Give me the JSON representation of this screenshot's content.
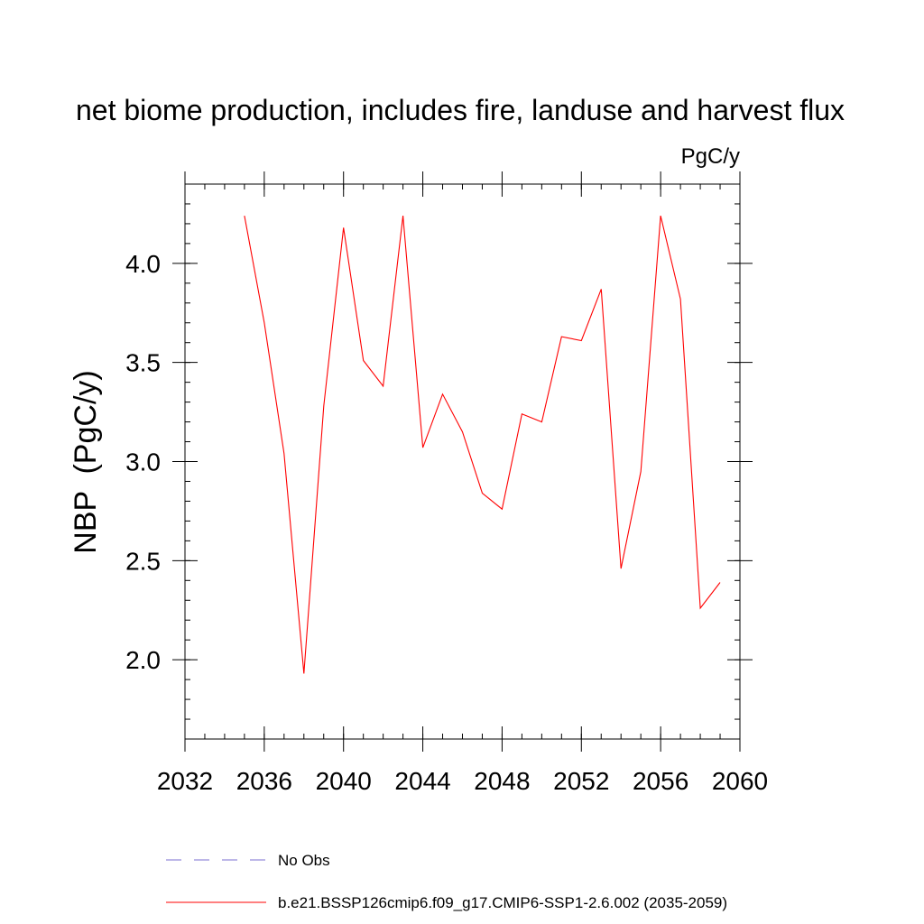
{
  "chart_data": {
    "type": "line",
    "title": "net biome production, includes fire, landuse and harvest flux",
    "units": "PgC/y",
    "ylabel": "NBP  (PgC/y)",
    "xlabel": "",
    "xlim": [
      2032,
      2060
    ],
    "ylim": [
      1.6,
      4.4
    ],
    "x_ticks": [
      2032,
      2036,
      2040,
      2044,
      2048,
      2052,
      2056,
      2060
    ],
    "y_ticks": [
      2.0,
      2.5,
      3.0,
      3.5,
      4.0
    ],
    "x_tick_labels": [
      "2032",
      "2036",
      "2040",
      "2044",
      "2048",
      "2052",
      "2056",
      "2060"
    ],
    "y_tick_labels": [
      "2.0",
      "2.5",
      "3.0",
      "3.5",
      "4.0"
    ],
    "x_minor_step": 1,
    "y_minor_step": 0.1,
    "grid": false,
    "legend_placement": "bottom",
    "series": [
      {
        "name": "b.e21.BSSP126cmip6.f09_g17.CMIP6-SSP1-2.6.002 (2035-2059)",
        "color": "#ff0000",
        "style": "solid",
        "x": [
          2035,
          2036,
          2037,
          2038,
          2039,
          2040,
          2041,
          2042,
          2043,
          2044,
          2045,
          2046,
          2047,
          2048,
          2049,
          2050,
          2051,
          2052,
          2053,
          2054,
          2055,
          2056,
          2057,
          2058,
          2059
        ],
        "values": [
          4.24,
          3.7,
          3.04,
          1.93,
          3.28,
          4.18,
          3.51,
          3.38,
          4.24,
          3.07,
          3.34,
          3.15,
          2.84,
          2.76,
          3.24,
          3.2,
          3.63,
          3.61,
          3.87,
          2.46,
          2.95,
          4.24,
          3.82,
          2.26,
          2.39
        ]
      },
      {
        "name": "No Obs",
        "color": "#7b6fd0",
        "style": "dashed",
        "x": [],
        "values": []
      }
    ]
  }
}
